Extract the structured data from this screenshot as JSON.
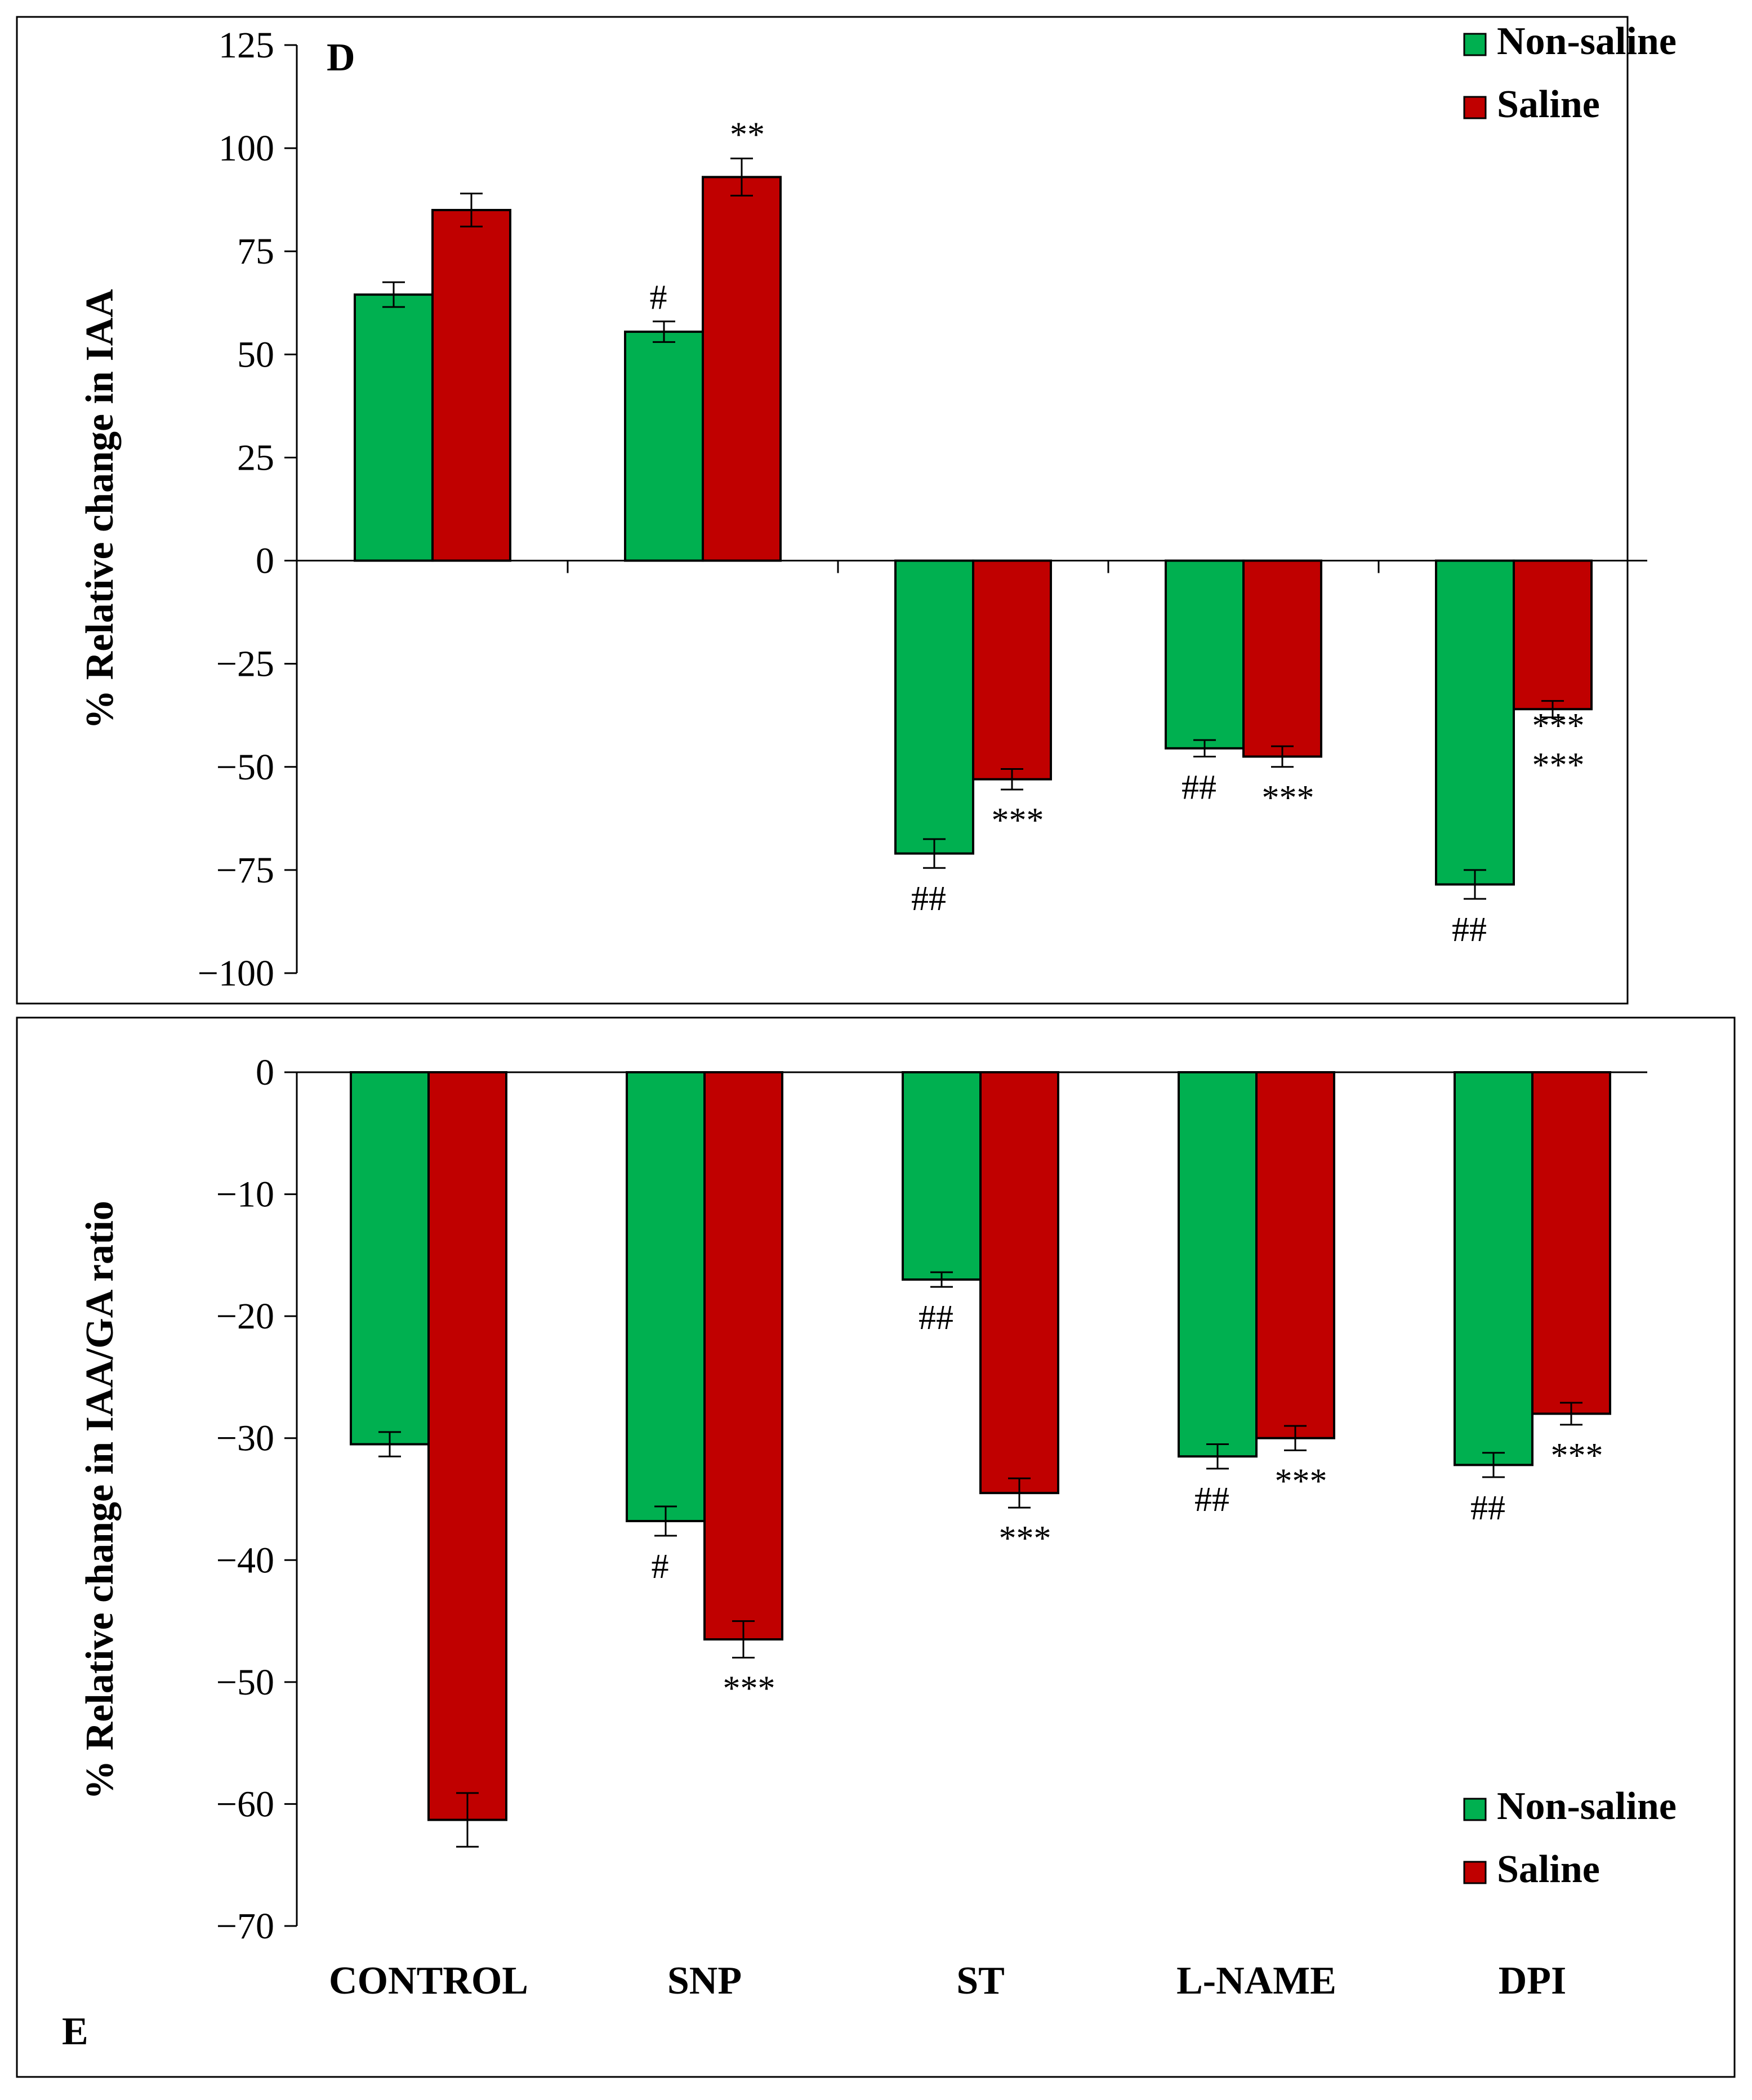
{
  "colors": {
    "non_saline": "#00B050",
    "saline": "#C00000",
    "axis": "#000000"
  },
  "chart_data": [
    {
      "type": "bar",
      "panel": "D",
      "title": "",
      "xlabel": "",
      "ylabel": "% Relative change in IAA",
      "ylim": [
        -100,
        125
      ],
      "yticks": [
        125,
        100,
        75,
        50,
        25,
        0,
        -25,
        -50,
        -75,
        -100
      ],
      "categories": [
        "CONTROL",
        "SNP",
        "ST",
        "L-NAME",
        "DPI"
      ],
      "legend": {
        "position": "top-right",
        "entries": [
          "Non-saline",
          "Saline"
        ]
      },
      "series": [
        {
          "name": "Non-saline",
          "values": [
            64.5,
            55.5,
            -71,
            -45.5,
            -78.5
          ],
          "errors": [
            3,
            2.5,
            3.5,
            2,
            3.5
          ]
        },
        {
          "name": "Saline",
          "values": [
            85,
            93,
            -53,
            -47.5,
            -36
          ],
          "errors": [
            4,
            4.5,
            2.5,
            2.5,
            2
          ]
        }
      ],
      "annotations": [
        {
          "category": "SNP",
          "series": "Non-saline",
          "text": "#"
        },
        {
          "category": "SNP",
          "series": "Saline",
          "text": "**"
        },
        {
          "category": "ST",
          "series": "Non-saline",
          "text": "##"
        },
        {
          "category": "ST",
          "series": "Saline",
          "text": "***"
        },
        {
          "category": "L-NAME",
          "series": "Non-saline",
          "text": "##"
        },
        {
          "category": "L-NAME",
          "series": "Saline",
          "text": "***"
        },
        {
          "category": "DPI",
          "series": "Non-saline",
          "text": "##"
        },
        {
          "category": "DPI",
          "series": "Saline",
          "text": "***"
        },
        {
          "category": "DPI",
          "series": "Saline",
          "text": "***"
        }
      ]
    },
    {
      "type": "bar",
      "panel": "E",
      "title": "",
      "xlabel": "",
      "ylabel": "% Relative change in IAA/GA ratio",
      "ylim": [
        -70,
        0
      ],
      "yticks": [
        0,
        -10,
        -20,
        -30,
        -40,
        -50,
        -60,
        -70
      ],
      "categories": [
        "CONTROL",
        "SNP",
        "ST",
        "L-NAME",
        "DPI"
      ],
      "legend": {
        "position": "bottom-right",
        "entries": [
          "Non-saline",
          "Saline"
        ]
      },
      "series": [
        {
          "name": "Non-saline",
          "values": [
            -30.5,
            -36.8,
            -17,
            -31.5,
            -32.2
          ],
          "errors": [
            1,
            1.2,
            0.6,
            1,
            1
          ]
        },
        {
          "name": "Saline",
          "values": [
            -61.3,
            -46.5,
            -34.5,
            -30,
            -28
          ],
          "errors": [
            2.2,
            1.5,
            1.2,
            1,
            0.9
          ]
        }
      ],
      "annotations": [
        {
          "category": "SNP",
          "series": "Non-saline",
          "text": "#"
        },
        {
          "category": "SNP",
          "series": "Saline",
          "text": "***"
        },
        {
          "category": "ST",
          "series": "Non-saline",
          "text": "##"
        },
        {
          "category": "ST",
          "series": "Saline",
          "text": "***"
        },
        {
          "category": "L-NAME",
          "series": "Non-saline",
          "text": "##"
        },
        {
          "category": "L-NAME",
          "series": "Saline",
          "text": "***"
        },
        {
          "category": "DPI",
          "series": "Non-saline",
          "text": "##"
        },
        {
          "category": "DPI",
          "series": "Saline",
          "text": "***"
        }
      ]
    }
  ]
}
